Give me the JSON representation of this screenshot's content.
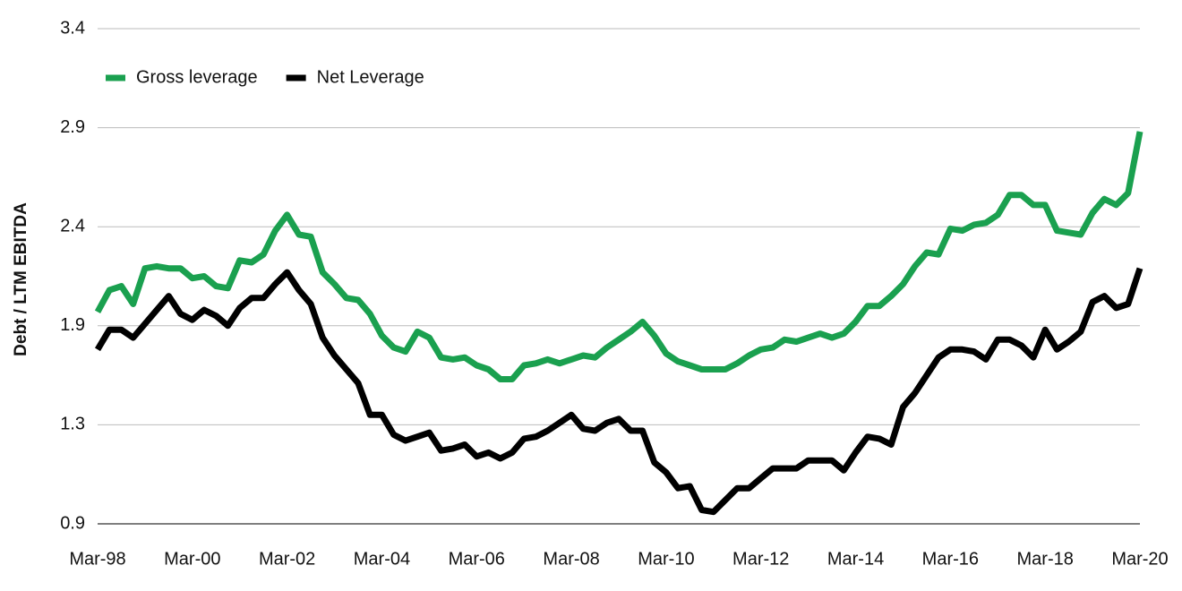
{
  "chart_data": {
    "type": "line",
    "y_label": "Debt / LTM EBITDA",
    "categories": [
      "Mar-98",
      null,
      null,
      null,
      null,
      null,
      null,
      null,
      "Mar-00",
      null,
      null,
      null,
      null,
      null,
      null,
      null,
      "Mar-02",
      null,
      null,
      null,
      null,
      null,
      null,
      null,
      "Mar-04",
      null,
      null,
      null,
      null,
      null,
      null,
      null,
      "Mar-06",
      null,
      null,
      null,
      null,
      null,
      null,
      null,
      "Mar-08",
      null,
      null,
      null,
      null,
      null,
      null,
      null,
      "Mar-10",
      null,
      null,
      null,
      null,
      null,
      null,
      null,
      "Mar-12",
      null,
      null,
      null,
      null,
      null,
      null,
      null,
      "Mar-14",
      null,
      null,
      null,
      null,
      null,
      null,
      null,
      "Mar-16",
      null,
      null,
      null,
      null,
      null,
      null,
      null,
      "Mar-18",
      null,
      null,
      null,
      null,
      null,
      null,
      null,
      "Mar-20"
    ],
    "series": [
      {
        "name": "Gross leverage",
        "color": "#1aa04f",
        "values": [
          1.92,
          2.03,
          2.05,
          1.96,
          2.14,
          2.15,
          2.14,
          2.14,
          2.09,
          2.1,
          2.05,
          2.04,
          2.18,
          2.17,
          2.21,
          2.33,
          2.41,
          2.31,
          2.3,
          2.12,
          2.06,
          1.99,
          1.98,
          1.91,
          1.8,
          1.74,
          1.72,
          1.82,
          1.79,
          1.69,
          1.68,
          1.69,
          1.65,
          1.63,
          1.58,
          1.58,
          1.65,
          1.66,
          1.68,
          1.66,
          1.68,
          1.7,
          1.69,
          1.74,
          1.78,
          1.82,
          1.87,
          1.8,
          1.71,
          1.67,
          1.65,
          1.63,
          1.63,
          1.63,
          1.66,
          1.7,
          1.73,
          1.74,
          1.78,
          1.77,
          1.79,
          1.81,
          1.79,
          1.81,
          1.87,
          1.95,
          1.95,
          2.0,
          2.06,
          2.15,
          2.22,
          2.21,
          2.34,
          2.33,
          2.36,
          2.37,
          2.41,
          2.51,
          2.51,
          2.46,
          2.46,
          2.33,
          2.32,
          2.31,
          2.42,
          2.49,
          2.46,
          2.52,
          2.83
        ]
      },
      {
        "name": "Net Leverage",
        "color": "#000000",
        "values": [
          1.73,
          1.83,
          1.83,
          1.79,
          1.86,
          1.93,
          2.0,
          1.91,
          1.88,
          1.93,
          1.9,
          1.85,
          1.94,
          1.99,
          1.99,
          2.06,
          2.12,
          2.03,
          1.96,
          1.79,
          1.7,
          1.63,
          1.56,
          1.4,
          1.4,
          1.3,
          1.27,
          1.29,
          1.31,
          1.22,
          1.23,
          1.25,
          1.19,
          1.21,
          1.18,
          1.21,
          1.28,
          1.29,
          1.32,
          1.36,
          1.4,
          1.33,
          1.32,
          1.36,
          1.38,
          1.32,
          1.32,
          1.16,
          1.11,
          1.03,
          1.04,
          0.92,
          0.91,
          0.97,
          1.03,
          1.03,
          1.08,
          1.13,
          1.13,
          1.13,
          1.17,
          1.17,
          1.17,
          1.12,
          1.21,
          1.29,
          1.28,
          1.25,
          1.44,
          1.51,
          1.6,
          1.69,
          1.73,
          1.73,
          1.72,
          1.68,
          1.78,
          1.78,
          1.75,
          1.69,
          1.83,
          1.73,
          1.77,
          1.82,
          1.97,
          2.0,
          1.94,
          1.96,
          2.14
        ]
      }
    ],
    "ylim": [
      0.85,
      3.35
    ],
    "yticks": [
      {
        "value": 0.85,
        "label": "0.9"
      },
      {
        "value": 1.35,
        "label": "1.3"
      },
      {
        "value": 1.85,
        "label": "1.9"
      },
      {
        "value": 2.35,
        "label": "2.4"
      },
      {
        "value": 2.85,
        "label": "2.9"
      },
      {
        "value": 3.35,
        "label": "3.4"
      }
    ],
    "grid": true,
    "legend": "upper left"
  }
}
